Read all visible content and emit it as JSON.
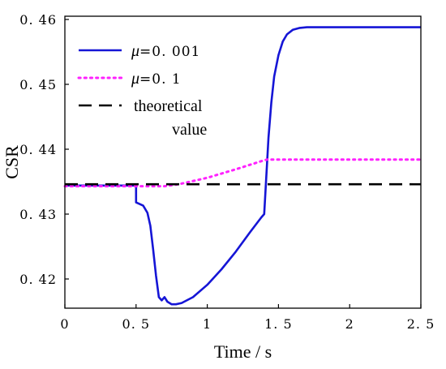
{
  "chart_data": {
    "type": "line",
    "xlabel": "Time / s",
    "ylabel": "CSR",
    "xlim": [
      0,
      2.5
    ],
    "ylim": [
      0.4155,
      0.4605
    ],
    "x_ticks": [
      "0",
      "0. 5",
      "1",
      "1. 5",
      "2",
      "2. 5"
    ],
    "x_tick_values": [
      0,
      0.5,
      1,
      1.5,
      2,
      2.5
    ],
    "y_ticks": [
      "0. 42",
      "0. 43",
      "0. 44",
      "0. 45",
      "0. 46"
    ],
    "y_tick_values": [
      0.42,
      0.43,
      0.44,
      0.45,
      0.46
    ],
    "grid": false,
    "legend_position": "top-left",
    "series": [
      {
        "name": "μ=0. 001",
        "legend_symbol": "μ",
        "legend_value": "=0. 001",
        "color": "#1515d6",
        "style": "solid",
        "x": [
          0,
          0.5,
          0.5,
          0.55,
          0.58,
          0.6,
          0.62,
          0.64,
          0.66,
          0.68,
          0.7,
          0.72,
          0.75,
          0.78,
          0.82,
          0.9,
          1.0,
          1.1,
          1.2,
          1.3,
          1.38,
          1.4,
          1.41,
          1.42,
          1.43,
          1.45,
          1.47,
          1.5,
          1.53,
          1.56,
          1.6,
          1.65,
          1.7,
          1.8,
          2.0,
          2.2,
          2.5
        ],
        "y": [
          0.4344,
          0.4344,
          0.4318,
          0.4313,
          0.4302,
          0.4282,
          0.4245,
          0.4205,
          0.4172,
          0.4167,
          0.4172,
          0.4165,
          0.4161,
          0.4161,
          0.4163,
          0.4172,
          0.4191,
          0.4215,
          0.4242,
          0.4272,
          0.4295,
          0.43,
          0.434,
          0.438,
          0.4418,
          0.4472,
          0.4512,
          0.4545,
          0.4566,
          0.4577,
          0.4584,
          0.4587,
          0.4588,
          0.4588,
          0.4588,
          0.4588,
          0.4588
        ]
      },
      {
        "name": "μ=0. 1",
        "legend_symbol": "μ",
        "legend_value": "=0. 1",
        "color": "#ff22ff",
        "style": "dotted",
        "x": [
          0,
          0.7,
          0.8,
          1.0,
          1.2,
          1.4,
          1.42,
          1.6,
          2.0,
          2.5
        ],
        "y": [
          0.4343,
          0.4343,
          0.4346,
          0.4356,
          0.4369,
          0.4383,
          0.4384,
          0.4384,
          0.4384,
          0.4384
        ]
      },
      {
        "name": "theoretical value",
        "legend_lines": [
          "theoretical",
          "value"
        ],
        "color": "#000000",
        "style": "dashed",
        "x": [
          0,
          2.5
        ],
        "y": [
          0.4346,
          0.4346
        ]
      }
    ]
  }
}
